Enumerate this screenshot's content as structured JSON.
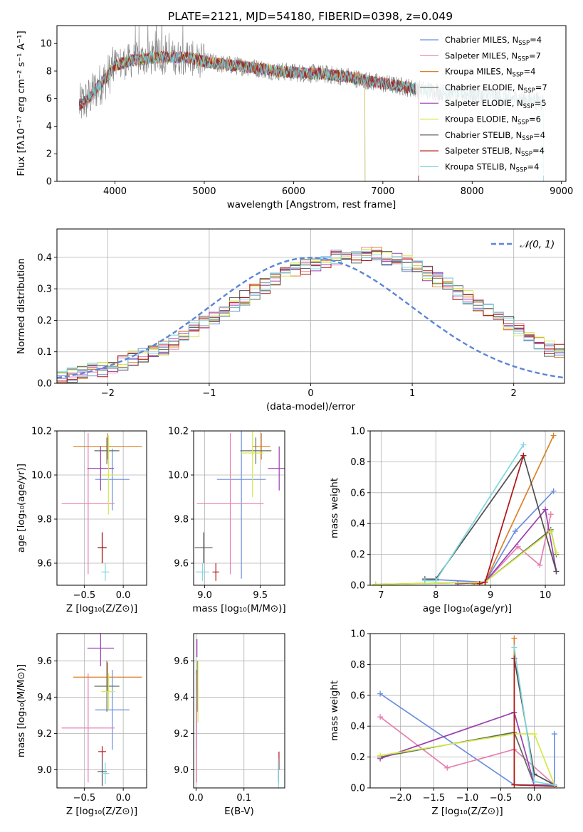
{
  "colors": [
    "#6a8ee0",
    "#e67fb0",
    "#d9822b",
    "#5e6e5e",
    "#9a3fb0",
    "#d6e84a",
    "#4f4f4f",
    "#b01616",
    "#7fd7e0"
  ],
  "chart_data": [
    {
      "id": "spectrum",
      "type": "line",
      "title": "PLATE=2121, MJD=54180, FIBERID=0398, z=0.049",
      "xlabel": "wavelength [Angstrom, rest frame]",
      "ylabel": "Flux [fλ10⁻¹⁷ erg cm⁻² s⁻¹ A⁻¹]",
      "xlim": [
        3350,
        9050
      ],
      "ylim": [
        0,
        11.3
      ],
      "xticks": [
        4000,
        5000,
        6000,
        7000,
        8000,
        9000
      ],
      "yticks": [
        0,
        2,
        4,
        6,
        8,
        10
      ],
      "legend_position": "upper right",
      "legend": [
        {
          "prefix": "Chabrier MILES, N",
          "sub": "SSP",
          "suffix": "=4"
        },
        {
          "prefix": "Salpeter MILES, N",
          "sub": "SSP",
          "suffix": "=7"
        },
        {
          "prefix": "Kroupa MILES, N",
          "sub": "SSP",
          "suffix": "=4"
        },
        {
          "prefix": "Chabrier ELODIE, N",
          "sub": "SSP",
          "suffix": "=7"
        },
        {
          "prefix": "Salpeter ELODIE, N",
          "sub": "SSP",
          "suffix": "=5"
        },
        {
          "prefix": "Kroupa ELODIE, N",
          "sub": "SSP",
          "suffix": "=6"
        },
        {
          "prefix": "Chabrier STELIB, N",
          "sub": "SSP",
          "suffix": "=4"
        },
        {
          "prefix": "Salpeter STELIB, N",
          "sub": "SSP",
          "suffix": "=4"
        },
        {
          "prefix": "Kroupa STELIB, N",
          "sub": "SSP",
          "suffix": "=4"
        }
      ],
      "data_envelope": {
        "x": [
          3600,
          3700,
          3800,
          3900,
          4000,
          4200,
          4500,
          4800,
          5000,
          5200,
          5500,
          5800,
          6000,
          6300,
          6600,
          6900,
          7200,
          7500,
          8000,
          8500,
          8800
        ],
        "y": [
          5.5,
          6.0,
          6.8,
          7.5,
          8.4,
          8.8,
          9.0,
          9.0,
          8.7,
          8.5,
          8.3,
          8.0,
          7.9,
          7.8,
          7.6,
          7.2,
          6.9,
          6.6,
          6.3,
          6.0,
          5.8
        ]
      },
      "model_cutoffs": [
        {
          "series": 0,
          "xmin": 3600,
          "xmax": 7400
        },
        {
          "series": 1,
          "xmin": 3600,
          "xmax": 7400
        },
        {
          "series": 2,
          "xmin": 3600,
          "xmax": 7400
        },
        {
          "series": 3,
          "xmin": 3600,
          "xmax": 7400
        },
        {
          "series": 4,
          "xmin": 3900,
          "xmax": 6800
        },
        {
          "series": 5,
          "xmin": 3900,
          "xmax": 6800
        },
        {
          "series": 6,
          "xmin": 3600,
          "xmax": 7400
        },
        {
          "series": 7,
          "xmin": 3600,
          "xmax": 7400
        },
        {
          "series": 8,
          "xmin": 3600,
          "xmax": 8800
        }
      ]
    },
    {
      "id": "residuals",
      "type": "histogram",
      "xlabel": "(data-model)/error",
      "ylabel": "Normed distribution",
      "xlim": [
        -2.5,
        2.5
      ],
      "ylim": [
        0,
        0.49
      ],
      "xticks": [
        -2,
        -1,
        0,
        1,
        2
      ],
      "yticks": [
        0.0,
        0.1,
        0.2,
        0.3,
        0.4
      ],
      "legend_position": "upper right",
      "legend": [
        "𝒩(0, 1)"
      ],
      "bin_width": 0.1,
      "bin_start": -2.5,
      "base_values": [
        0.02,
        0.025,
        0.03,
        0.04,
        0.045,
        0.055,
        0.065,
        0.08,
        0.09,
        0.1,
        0.11,
        0.13,
        0.15,
        0.17,
        0.19,
        0.21,
        0.23,
        0.25,
        0.27,
        0.29,
        0.31,
        0.33,
        0.35,
        0.36,
        0.37,
        0.38,
        0.39,
        0.4,
        0.4,
        0.4,
        0.41,
        0.41,
        0.4,
        0.39,
        0.38,
        0.37,
        0.35,
        0.33,
        0.31,
        0.29,
        0.27,
        0.25,
        0.23,
        0.21,
        0.19,
        0.17,
        0.15,
        0.13,
        0.11,
        0.1
      ]
    },
    {
      "id": "z-age",
      "type": "errorbar",
      "xlabel": "Z [log₁₀(Z/Z⊙)]",
      "ylabel": "age  [log₁₀(age/yr)]",
      "xlim": [
        -0.85,
        0.3
      ],
      "ylim": [
        9.5,
        10.2
      ],
      "xticks": [
        -0.5,
        0.0
      ],
      "yticks": [
        9.6,
        9.8,
        10.0,
        10.2
      ],
      "points": [
        {
          "series": 0,
          "x": -0.14,
          "xerr": 0.22,
          "y": 9.98,
          "yerr": 0.14
        },
        {
          "series": 1,
          "x": -0.45,
          "xerr": 0.34,
          "y": 9.87,
          "yerr": 0.32
        },
        {
          "series": 2,
          "x": -0.2,
          "xerr": 0.44,
          "y": 10.13,
          "yerr": 0.06
        },
        {
          "series": 3,
          "x": -0.21,
          "xerr": 0.16,
          "y": 10.11,
          "yerr": 0.06
        },
        {
          "series": 4,
          "x": -0.29,
          "xerr": 0.17,
          "y": 10.03,
          "yerr": 0.1
        },
        {
          "series": 5,
          "x": -0.19,
          "xerr": 0.09,
          "y": 10.0,
          "yerr": 0.18
        },
        {
          "series": 6,
          "x": -0.27,
          "xerr": 0.06,
          "y": 9.67,
          "yerr": 0.07
        },
        {
          "series": 7,
          "x": -0.27,
          "xerr": 0.05,
          "y": 9.67,
          "yerr": 0.07
        },
        {
          "series": 8,
          "x": -0.23,
          "xerr": 0.05,
          "y": 9.56,
          "yerr": 0.04
        }
      ]
    },
    {
      "id": "mass-age",
      "type": "errorbar",
      "xlabel": "mass [log₁₀(M/M⊙)]",
      "ylabel": "",
      "xlim": [
        8.9,
        9.72
      ],
      "ylim": [
        9.5,
        10.2
      ],
      "xticks": [
        9.0,
        9.5
      ],
      "yticks": [
        9.6,
        9.8,
        10.0,
        10.2
      ],
      "points": [
        {
          "series": 0,
          "x": 9.33,
          "xerr": 0.22,
          "y": 9.98,
          "yerr": 0.45
        },
        {
          "series": 1,
          "x": 9.23,
          "xerr": 0.3,
          "y": 9.87,
          "yerr": 0.32
        },
        {
          "series": 2,
          "x": 9.51,
          "xerr": 0.08,
          "y": 10.13,
          "yerr": 0.06
        },
        {
          "series": 3,
          "x": 9.46,
          "xerr": 0.14,
          "y": 10.11,
          "yerr": 0.06
        },
        {
          "series": 4,
          "x": 9.67,
          "xerr": 0.1,
          "y": 10.03,
          "yerr": 0.1
        },
        {
          "series": 5,
          "x": 9.43,
          "xerr": 0.1,
          "y": 10.1,
          "yerr": 0.2
        },
        {
          "series": 6,
          "x": 8.99,
          "xerr": 0.08,
          "y": 9.67,
          "yerr": 0.07
        },
        {
          "series": 7,
          "x": 9.1,
          "xerr": 0.03,
          "y": 9.56,
          "yerr": 0.04
        },
        {
          "series": 8,
          "x": 8.98,
          "xerr": 0.06,
          "y": 9.56,
          "yerr": 0.04
        }
      ]
    },
    {
      "id": "age-weight",
      "type": "line",
      "xlabel": "age  [log₁₀(age/yr)]",
      "ylabel": "mass weight",
      "xlim": [
        6.8,
        10.35
      ],
      "ylim": [
        0,
        1.0
      ],
      "xticks": [
        7,
        8,
        9,
        10
      ],
      "yticks": [
        0.0,
        0.2,
        0.4,
        0.6,
        0.8,
        1.0
      ],
      "series": [
        {
          "series": 0,
          "x": [
            7.8,
            8.9,
            9.45,
            10.15
          ],
          "y": [
            0.04,
            0.02,
            0.35,
            0.61
          ]
        },
        {
          "series": 1,
          "x": [
            8.4,
            8.9,
            9.5,
            9.9,
            10.1
          ],
          "y": [
            0.01,
            0.02,
            0.25,
            0.13,
            0.46
          ]
        },
        {
          "series": 2,
          "x": [
            8.7,
            8.9,
            10.15
          ],
          "y": [
            0.01,
            0.02,
            0.97
          ]
        },
        {
          "series": 3,
          "x": [
            6.9,
            8.9,
            10.1,
            10.2
          ],
          "y": [
            0.005,
            0.02,
            0.36,
            0.2
          ]
        },
        {
          "series": 4,
          "x": [
            8.4,
            8.9,
            10.0,
            10.2
          ],
          "y": [
            0.01,
            0.02,
            0.49,
            0.09
          ]
        },
        {
          "series": 5,
          "x": [
            6.9,
            8.9,
            10.1,
            10.2
          ],
          "y": [
            0.005,
            0.02,
            0.35,
            0.21
          ]
        },
        {
          "series": 6,
          "x": [
            7.8,
            8.0,
            9.6,
            10.2
          ],
          "y": [
            0.04,
            0.04,
            0.84,
            0.09
          ]
        },
        {
          "series": 7,
          "x": [
            8.8,
            8.9,
            9.6
          ],
          "y": [
            0.01,
            0.02,
            0.84
          ]
        },
        {
          "series": 8,
          "x": [
            7.8,
            8.0,
            9.6
          ],
          "y": [
            0.03,
            0.03,
            0.91
          ]
        }
      ]
    },
    {
      "id": "z-mass",
      "type": "errorbar",
      "xlabel": "Z [log₁₀(Z/Z⊙)]",
      "ylabel": "mass [log₁₀(M/M⊙)]",
      "xlim": [
        -0.85,
        0.3
      ],
      "ylim": [
        8.9,
        9.75
      ],
      "xticks": [
        -0.5,
        0.0
      ],
      "yticks": [
        9.0,
        9.2,
        9.4,
        9.6
      ],
      "points": [
        {
          "series": 0,
          "x": -0.14,
          "xerr": 0.22,
          "y": 9.33,
          "yerr": 0.22
        },
        {
          "series": 1,
          "x": -0.45,
          "xerr": 0.34,
          "y": 9.23,
          "yerr": 0.3
        },
        {
          "series": 2,
          "x": -0.2,
          "xerr": 0.44,
          "y": 9.51,
          "yerr": 0.08
        },
        {
          "series": 3,
          "x": -0.21,
          "xerr": 0.16,
          "y": 9.46,
          "yerr": 0.14
        },
        {
          "series": 4,
          "x": -0.29,
          "xerr": 0.17,
          "y": 9.67,
          "yerr": 0.1
        },
        {
          "series": 5,
          "x": -0.19,
          "xerr": 0.09,
          "y": 9.43,
          "yerr": 0.1
        },
        {
          "series": 6,
          "x": -0.27,
          "xerr": 0.06,
          "y": 8.99,
          "yerr": 0.08
        },
        {
          "series": 7,
          "x": -0.27,
          "xerr": 0.05,
          "y": 9.1,
          "yerr": 0.03
        },
        {
          "series": 8,
          "x": -0.23,
          "xerr": 0.05,
          "y": 8.98,
          "yerr": 0.06
        }
      ]
    },
    {
      "id": "ebv-mass",
      "type": "errorbar",
      "xlabel": "E(B-V)",
      "ylabel": "",
      "xlim": [
        -0.005,
        0.185
      ],
      "ylim": [
        8.9,
        9.75
      ],
      "xticks": [
        0.0,
        0.1
      ],
      "yticks": [
        9.0,
        9.2,
        9.4,
        9.6
      ],
      "points": [
        {
          "series": 0,
          "x": 0.001,
          "xerr": 0.0,
          "y": 9.33,
          "yerr": 0.22
        },
        {
          "series": 1,
          "x": 0.001,
          "xerr": 0.0,
          "y": 9.23,
          "yerr": 0.3
        },
        {
          "series": 2,
          "x": 0.003,
          "xerr": 0.0,
          "y": 9.51,
          "yerr": 0.08
        },
        {
          "series": 3,
          "x": 0.003,
          "xerr": 0.0,
          "y": 9.46,
          "yerr": 0.14
        },
        {
          "series": 4,
          "x": 0.002,
          "xerr": 0.0,
          "y": 9.67,
          "yerr": 0.05
        },
        {
          "series": 5,
          "x": 0.004,
          "xerr": 0.0,
          "y": 9.43,
          "yerr": 0.17
        },
        {
          "series": 6,
          "x": 0.172,
          "xerr": 0.0,
          "y": 8.99,
          "yerr": 0.06
        },
        {
          "series": 7,
          "x": 0.173,
          "xerr": 0.0,
          "y": 9.05,
          "yerr": 0.05
        },
        {
          "series": 8,
          "x": 0.172,
          "xerr": 0.0,
          "y": 8.98,
          "yerr": 0.08
        }
      ]
    },
    {
      "id": "z-weight",
      "type": "line",
      "xlabel": "Z [log₁₀(Z/Z⊙)]",
      "ylabel": "mass weight",
      "xlim": [
        -2.45,
        0.45
      ],
      "ylim": [
        0,
        1.0
      ],
      "xticks": [
        -2.0,
        -1.5,
        -1.0,
        -0.5,
        0.0
      ],
      "yticks": [
        0.0,
        0.2,
        0.4,
        0.6,
        0.8,
        1.0
      ],
      "series": [
        {
          "series": 0,
          "x": [
            -2.3,
            -0.3,
            0.3,
            0.3
          ],
          "y": [
            0.61,
            0.02,
            0.02,
            0.35
          ]
        },
        {
          "series": 1,
          "x": [
            -2.3,
            -1.3,
            -0.3,
            0.3
          ],
          "y": [
            0.46,
            0.13,
            0.25,
            0.02
          ]
        },
        {
          "series": 2,
          "x": [
            -0.3,
            -0.3,
            0.3
          ],
          "y": [
            0.97,
            0.02,
            0.01
          ]
        },
        {
          "series": 3,
          "x": [
            -2.3,
            -0.3,
            0.0,
            0.3
          ],
          "y": [
            0.2,
            0.36,
            0.02,
            0.01
          ]
        },
        {
          "series": 4,
          "x": [
            -2.3,
            -0.3,
            0.0,
            0.3
          ],
          "y": [
            0.19,
            0.49,
            0.02,
            0.01
          ]
        },
        {
          "series": 5,
          "x": [
            -2.3,
            -0.3,
            0.0,
            0.3
          ],
          "y": [
            0.21,
            0.35,
            0.35,
            0.02
          ]
        },
        {
          "series": 6,
          "x": [
            -0.3,
            0.0,
            0.3
          ],
          "y": [
            0.84,
            0.09,
            0.02
          ]
        },
        {
          "series": 7,
          "x": [
            -0.3,
            -0.3,
            0.3
          ],
          "y": [
            0.84,
            0.02,
            0.01
          ]
        },
        {
          "series": 8,
          "x": [
            -0.3,
            0.0,
            0.3
          ],
          "y": [
            0.91,
            0.04,
            0.02
          ]
        }
      ]
    }
  ]
}
